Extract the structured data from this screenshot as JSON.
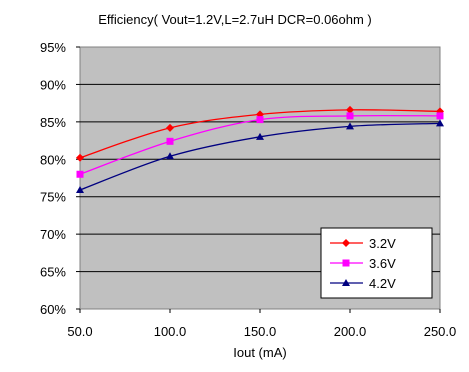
{
  "chart_data": {
    "type": "line",
    "title": "Efficiency( Vout=1.2V,L=2.7uH DCR=0.06ohm )",
    "xlabel": "Iout (mA)",
    "ylabel": "",
    "x": [
      50,
      100,
      150,
      200,
      250
    ],
    "x_tick_labels": [
      "50.0",
      "100.0",
      "150.0",
      "200.0",
      "250.0"
    ],
    "xlim": [
      50,
      250
    ],
    "ylim": [
      60,
      95
    ],
    "y_tick_labels": [
      "60%",
      "65%",
      "70%",
      "75%",
      "80%",
      "85%",
      "90%",
      "95%"
    ],
    "grid": true,
    "legend_position": "bottom-right",
    "plot_background": "#c0c0c0",
    "series": [
      {
        "name": "3.2V",
        "values": [
          80.2,
          84.2,
          86.0,
          86.6,
          86.4
        ],
        "color": "#ff0000",
        "marker": "diamond"
      },
      {
        "name": "3.6V",
        "values": [
          78.0,
          82.4,
          85.3,
          85.8,
          85.8
        ],
        "color": "#ff00ff",
        "marker": "square"
      },
      {
        "name": "4.2V",
        "values": [
          75.9,
          80.4,
          83.0,
          84.4,
          84.8
        ],
        "color": "#000080",
        "marker": "triangle"
      }
    ]
  }
}
